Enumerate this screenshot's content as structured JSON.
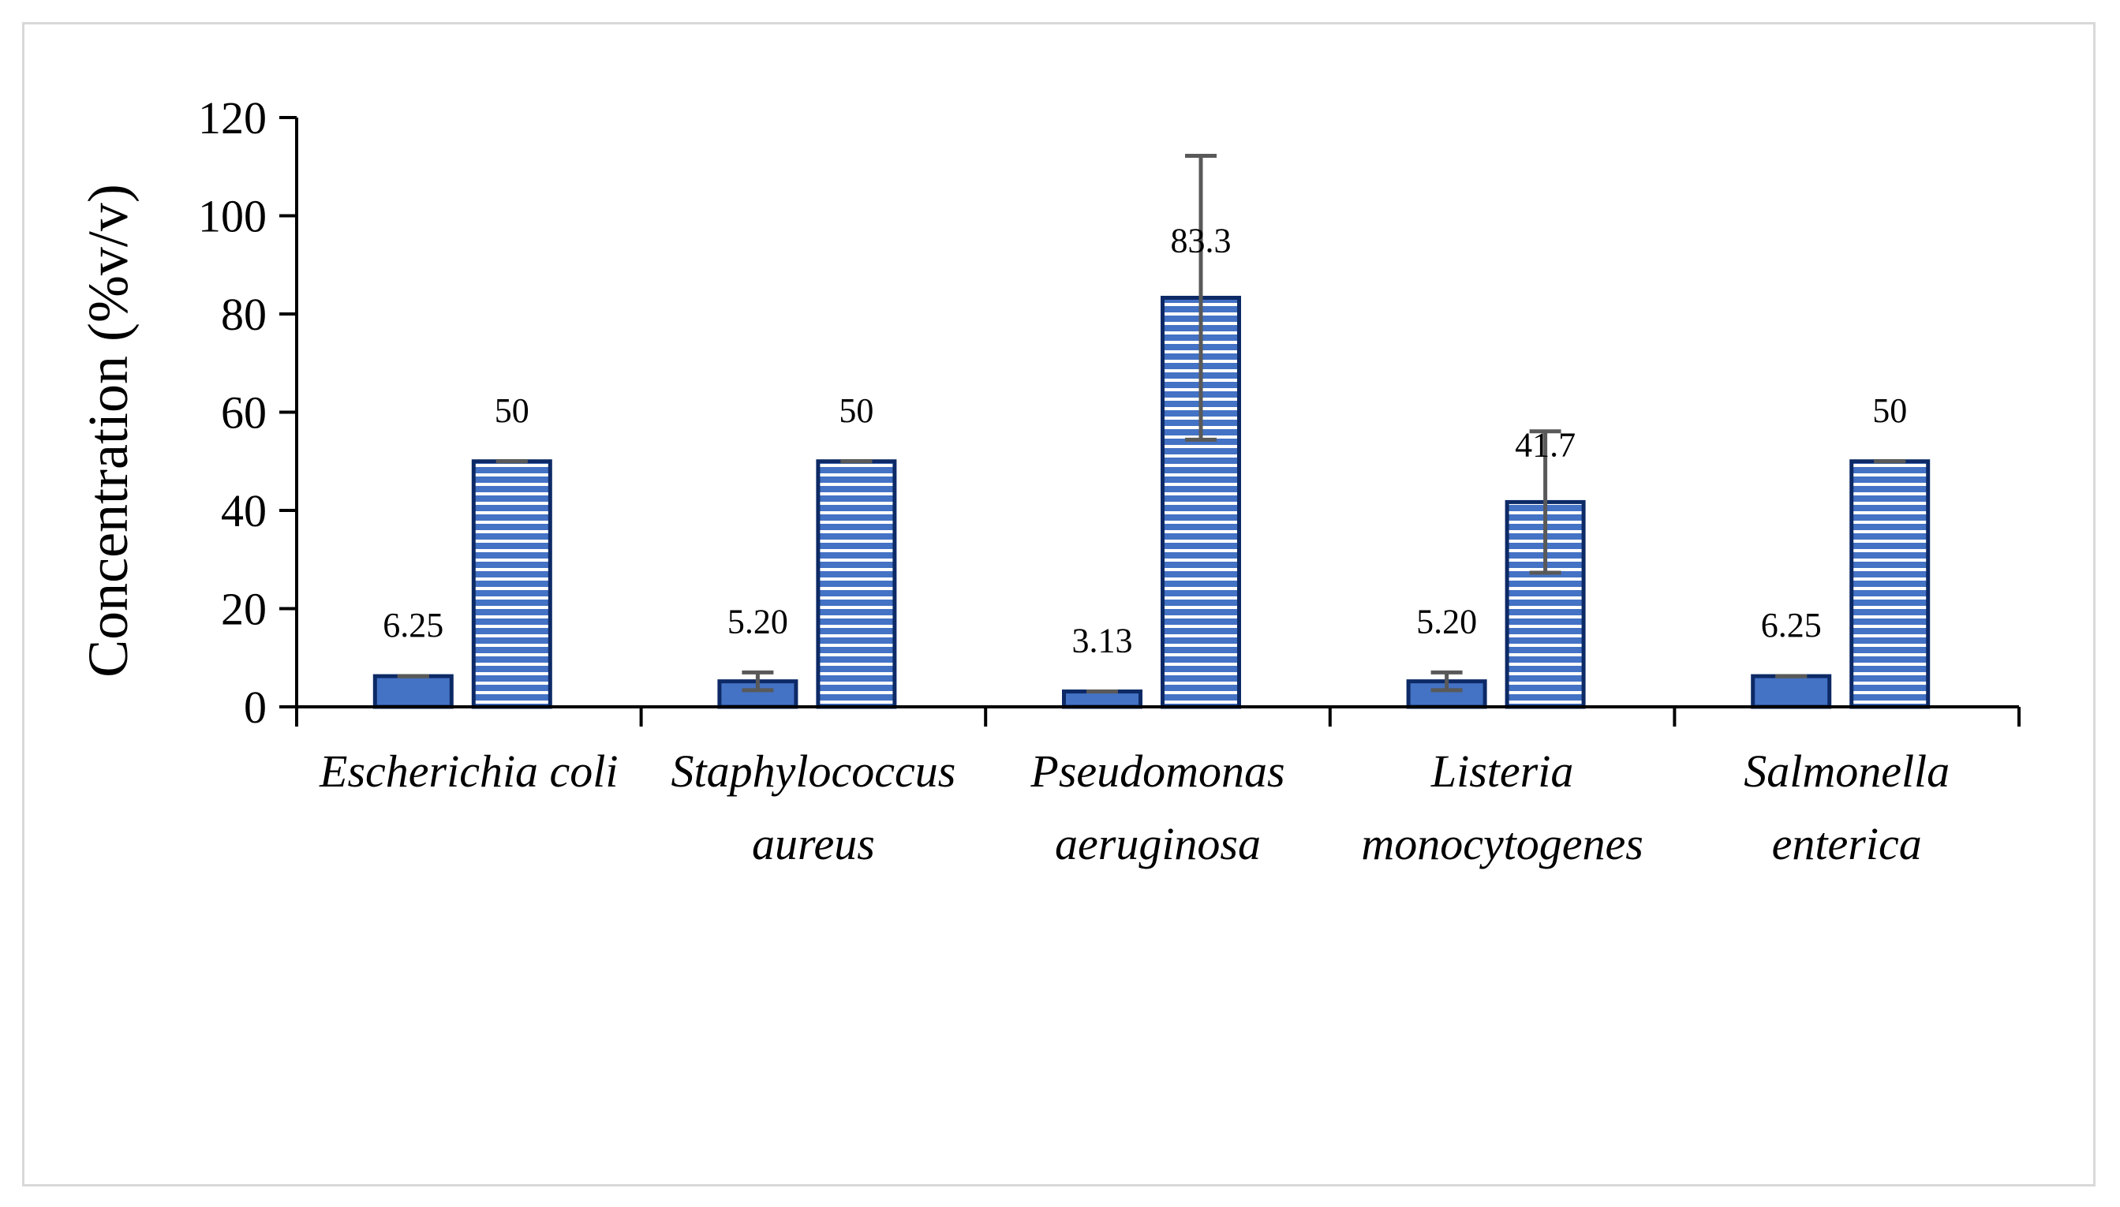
{
  "chart_data": {
    "type": "bar",
    "title": "",
    "xlabel": "",
    "ylabel": "Concentration (%v/v)",
    "ylim": [
      0,
      120
    ],
    "yticks": [
      0,
      20,
      40,
      60,
      80,
      100,
      120
    ],
    "grid": false,
    "legend": "none",
    "categories": [
      [
        "Escherichia coli"
      ],
      [
        "Staphylococcus",
        "aureus"
      ],
      [
        "Pseudomonas",
        "aeruginosa"
      ],
      [
        "Listeria",
        "monocytogenes"
      ],
      [
        "Salmonella",
        "enterica"
      ]
    ],
    "series": [
      {
        "name": "series-1-solid",
        "fill": "#4472c4",
        "pattern": "solid",
        "values": [
          6.25,
          5.2,
          3.13,
          5.2,
          6.25
        ],
        "labels": [
          "6.25",
          "5.20",
          "3.13",
          "5.20",
          "6.25"
        ],
        "errors": [
          0,
          1.8,
          0,
          1.8,
          0
        ]
      },
      {
        "name": "series-2-striped",
        "fill": "#4472c4",
        "pattern": "horizontal-stripes",
        "values": [
          50,
          50,
          83.3,
          41.7,
          50
        ],
        "labels": [
          "50",
          "50",
          "83.3",
          "41.7",
          "50"
        ],
        "errors": [
          0,
          0,
          28.9,
          14.4,
          0
        ]
      }
    ],
    "colors": {
      "bar_fill": "#4472c4",
      "bar_edge": "#0d2a66",
      "stripe": "#ffffff",
      "error_bar": "#595959",
      "axis": "#000000"
    }
  }
}
